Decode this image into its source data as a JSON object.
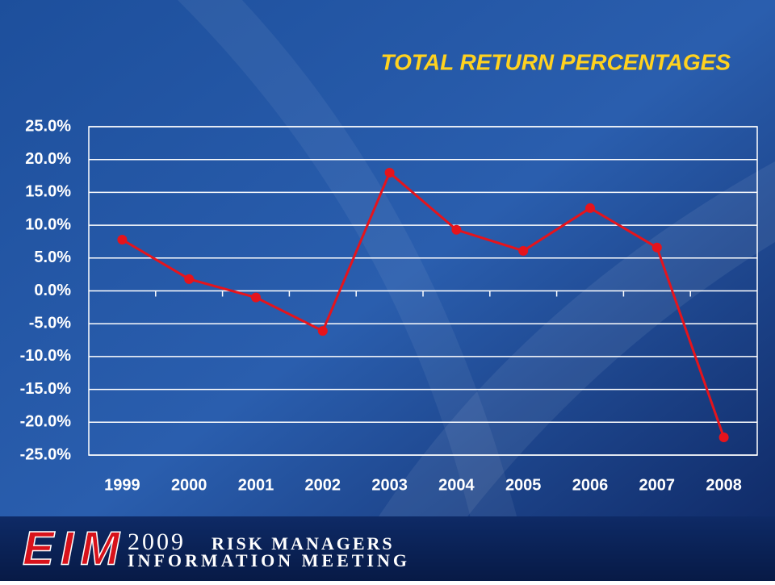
{
  "chart_data": {
    "type": "line",
    "title": "TOTAL RETURN PERCENTAGES",
    "categories": [
      "1999",
      "2000",
      "2001",
      "2002",
      "2003",
      "2004",
      "2005",
      "2006",
      "2007",
      "2008"
    ],
    "series": [
      {
        "name": "Total Return",
        "color": "#e5141c",
        "values": [
          7.8,
          1.8,
          -1.0,
          -6.1,
          18.0,
          9.3,
          6.1,
          12.6,
          6.6,
          -22.3
        ]
      }
    ],
    "ylim": [
      -25,
      25
    ],
    "yticks": [
      {
        "value": 25,
        "label": "25.0%"
      },
      {
        "value": 20,
        "label": "20.0%"
      },
      {
        "value": 15,
        "label": "15.0%"
      },
      {
        "value": 10,
        "label": "10.0%"
      },
      {
        "value": 5,
        "label": "5.0%"
      },
      {
        "value": 0,
        "label": "0.0%"
      },
      {
        "value": -5,
        "label": "-5.0%"
      },
      {
        "value": -10,
        "label": "-10.0%"
      },
      {
        "value": -15,
        "label": "-15.0%"
      },
      {
        "value": -20,
        "label": "-20.0%"
      },
      {
        "value": -25,
        "label": "-25.0%"
      }
    ],
    "grid": true
  },
  "footer": {
    "logo": "EIM",
    "year": "2009",
    "line1": "RISK MANAGERS",
    "line2": "INFORMATION MEETING"
  }
}
